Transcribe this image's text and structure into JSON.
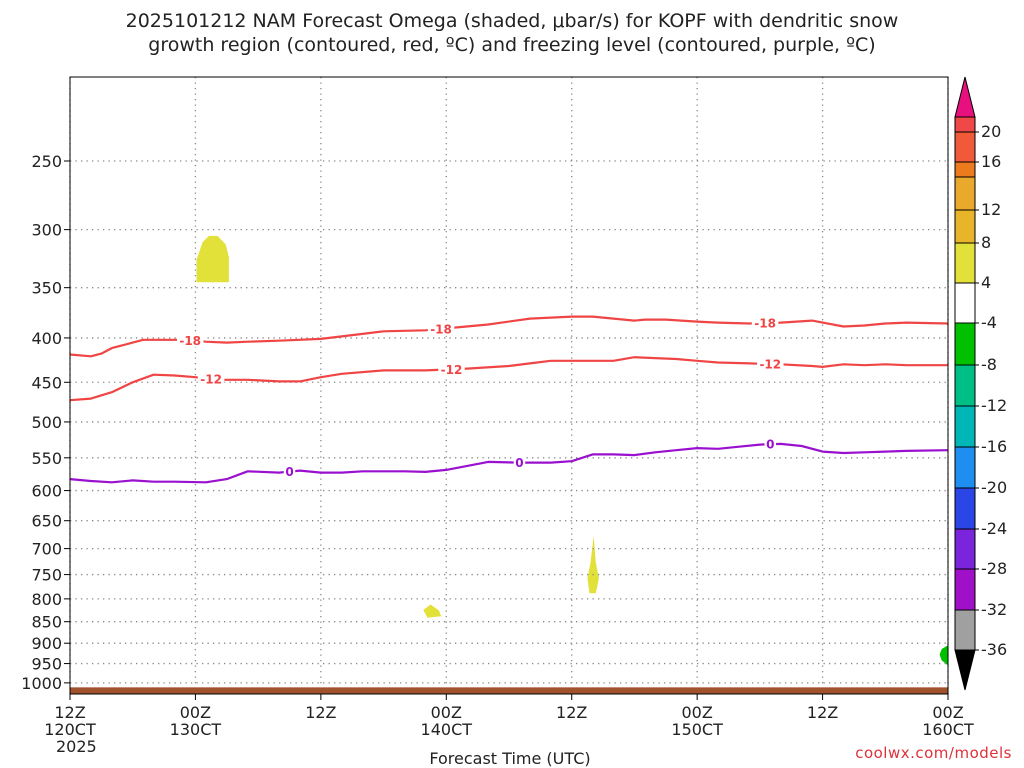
{
  "chart_data": {
    "type": "contour-time-height",
    "title_line1": "2025101212 NAM Forecast Omega (shaded, μbar/s) for KOPF with dendritic snow",
    "title_line2": "growth region (contoured, red, ºC) and freezing level (contoured, purple, ºC)",
    "xlabel": "Forecast Time (UTC)",
    "credit": "coolwx.com/models",
    "x_range_hours": [
      0,
      84
    ],
    "y_range_hPa": [
      1030,
      200
    ],
    "y_ticks": [
      {
        "value": 250,
        "label": "250"
      },
      {
        "value": 300,
        "label": "300"
      },
      {
        "value": 350,
        "label": "350"
      },
      {
        "value": 400,
        "label": "400"
      },
      {
        "value": 450,
        "label": "450"
      },
      {
        "value": 500,
        "label": "500"
      },
      {
        "value": 550,
        "label": "550"
      },
      {
        "value": 600,
        "label": "600"
      },
      {
        "value": 650,
        "label": "650"
      },
      {
        "value": 700,
        "label": "700"
      },
      {
        "value": 750,
        "label": "750"
      },
      {
        "value": 800,
        "label": "800"
      },
      {
        "value": 850,
        "label": "850"
      },
      {
        "value": 900,
        "label": "900"
      },
      {
        "value": 950,
        "label": "950"
      },
      {
        "value": 1000,
        "label": "1000"
      }
    ],
    "x_ticks": [
      {
        "hour": 0,
        "lines": [
          "12Z",
          "120CT",
          "2025"
        ]
      },
      {
        "hour": 12,
        "lines": [
          "00Z",
          "130CT"
        ]
      },
      {
        "hour": 24,
        "lines": [
          "12Z"
        ]
      },
      {
        "hour": 36,
        "lines": [
          "00Z",
          "140CT"
        ]
      },
      {
        "hour": 48,
        "lines": [
          "12Z"
        ]
      },
      {
        "hour": 60,
        "lines": [
          "00Z",
          "150CT"
        ]
      },
      {
        "hour": 72,
        "lines": [
          "12Z"
        ]
      },
      {
        "hour": 84,
        "lines": [
          "00Z",
          "160CT"
        ]
      }
    ],
    "contours": [
      {
        "name": "minus18",
        "level_label": "-18",
        "color": "#f04545",
        "points": [
          [
            0,
            418
          ],
          [
            2,
            420
          ],
          [
            3,
            417
          ],
          [
            4,
            411
          ],
          [
            6,
            405
          ],
          [
            7,
            402
          ],
          [
            9,
            402
          ],
          [
            11,
            402
          ],
          [
            13,
            404
          ],
          [
            15,
            405
          ],
          [
            17,
            404
          ],
          [
            20,
            403
          ],
          [
            24,
            401
          ],
          [
            27,
            397
          ],
          [
            30,
            393
          ],
          [
            34,
            392
          ],
          [
            36,
            390
          ],
          [
            40,
            386
          ],
          [
            44,
            380
          ],
          [
            48,
            378
          ],
          [
            50,
            378
          ],
          [
            52,
            380
          ],
          [
            54,
            382
          ],
          [
            55,
            381
          ],
          [
            57,
            381
          ],
          [
            60,
            383
          ],
          [
            62,
            384
          ],
          [
            65,
            385
          ],
          [
            68,
            384
          ],
          [
            71,
            382
          ],
          [
            72,
            384
          ],
          [
            74,
            388
          ],
          [
            76,
            387
          ],
          [
            78,
            385
          ],
          [
            80,
            384
          ],
          [
            84,
            385
          ]
        ],
        "labels": [
          {
            "hour": 11.5,
            "label": "-18"
          },
          {
            "hour": 35.5,
            "label": "-18"
          },
          {
            "hour": 66.5,
            "label": "-18"
          }
        ]
      },
      {
        "name": "minus12",
        "level_label": "-12",
        "color": "#f04545",
        "points": [
          [
            0,
            472
          ],
          [
            2,
            470
          ],
          [
            4,
            462
          ],
          [
            6,
            450
          ],
          [
            8,
            441
          ],
          [
            10,
            442
          ],
          [
            12,
            444
          ],
          [
            14,
            447
          ],
          [
            17,
            447
          ],
          [
            20,
            449
          ],
          [
            22,
            449
          ],
          [
            24,
            444
          ],
          [
            26,
            440
          ],
          [
            30,
            436
          ],
          [
            34,
            436
          ],
          [
            38,
            434
          ],
          [
            42,
            431
          ],
          [
            44,
            428
          ],
          [
            46,
            425
          ],
          [
            48,
            425
          ],
          [
            50,
            425
          ],
          [
            52,
            425
          ],
          [
            54,
            421
          ],
          [
            56,
            422
          ],
          [
            58,
            423
          ],
          [
            60,
            425
          ],
          [
            62,
            427
          ],
          [
            65,
            428
          ],
          [
            68,
            429
          ],
          [
            71,
            431
          ],
          [
            72,
            432
          ],
          [
            74,
            429
          ],
          [
            76,
            430
          ],
          [
            78,
            429
          ],
          [
            80,
            430
          ],
          [
            84,
            430
          ]
        ],
        "labels": [
          {
            "hour": 13.5,
            "label": "-12"
          },
          {
            "hour": 36.5,
            "label": "-12"
          },
          {
            "hour": 67,
            "label": "-12"
          }
        ]
      },
      {
        "name": "zero",
        "level_label": "0",
        "color": "#9a10cf",
        "points": [
          [
            0,
            582
          ],
          [
            2,
            585
          ],
          [
            4,
            587
          ],
          [
            6,
            584
          ],
          [
            8,
            586
          ],
          [
            10,
            586
          ],
          [
            13,
            587
          ],
          [
            15,
            582
          ],
          [
            17,
            570
          ],
          [
            20,
            572
          ],
          [
            22,
            569
          ],
          [
            24,
            572
          ],
          [
            26,
            572
          ],
          [
            28,
            570
          ],
          [
            30,
            570
          ],
          [
            32,
            570
          ],
          [
            34,
            571
          ],
          [
            36,
            568
          ],
          [
            38,
            562
          ],
          [
            40,
            556
          ],
          [
            43,
            557
          ],
          [
            46,
            557
          ],
          [
            48,
            555
          ],
          [
            50,
            545
          ],
          [
            52,
            545
          ],
          [
            54,
            546
          ],
          [
            56,
            542
          ],
          [
            58,
            539
          ],
          [
            60,
            536
          ],
          [
            62,
            537
          ],
          [
            64,
            534
          ],
          [
            66,
            531
          ],
          [
            68,
            530
          ],
          [
            70,
            533
          ],
          [
            72,
            541
          ],
          [
            74,
            543
          ],
          [
            76,
            542
          ],
          [
            78,
            541
          ],
          [
            80,
            540
          ],
          [
            84,
            539
          ]
        ],
        "labels": [
          {
            "hour": 21,
            "label": "0"
          },
          {
            "hour": 43,
            "label": "0"
          },
          {
            "hour": 67,
            "label": "0"
          }
        ]
      }
    ],
    "omega_blobs": [
      {
        "name": "blob-upper",
        "color": "#e1e13a",
        "points": [
          [
            12.1,
            345
          ],
          [
            12.1,
            325
          ],
          [
            12.7,
            310
          ],
          [
            13.3,
            305
          ],
          [
            14.1,
            305
          ],
          [
            14.9,
            312
          ],
          [
            15.2,
            323
          ],
          [
            15.2,
            345
          ]
        ]
      },
      {
        "name": "blob-mid",
        "color": "#e1e13a",
        "points": [
          [
            49.7,
            788
          ],
          [
            49.5,
            757
          ],
          [
            49.8,
            727
          ],
          [
            50.1,
            677
          ],
          [
            50.3,
            727
          ],
          [
            50.6,
            757
          ],
          [
            50.3,
            788
          ]
        ]
      },
      {
        "name": "blob-low",
        "color": "#e1e13a",
        "points": [
          [
            33.8,
            824
          ],
          [
            34.5,
            812
          ],
          [
            35.3,
            825
          ],
          [
            35.5,
            838
          ],
          [
            34.2,
            841
          ]
        ]
      },
      {
        "name": "blob-green",
        "color": "#00c000",
        "points": [
          [
            84,
            905
          ],
          [
            83.4,
            914
          ],
          [
            83.2,
            928
          ],
          [
            83.4,
            942
          ],
          [
            84,
            955
          ]
        ]
      }
    ],
    "ground_top_hPa": 1012,
    "ground_color": "#a0522d",
    "colorbar": {
      "top_triangle_color": "#e8107e",
      "bottom_triangle_color": "#000000",
      "boxes": [
        {
          "color": "#f04848",
          "label": "20"
        },
        {
          "color": "#f05a38",
          "label": "16"
        },
        {
          "color": "#ec7b1e",
          "label": ""
        },
        {
          "color": "#e8a92d",
          "label": "12"
        },
        {
          "color": "#e8b429",
          "label": "8"
        },
        {
          "color": "#e1e13a",
          "label": "4"
        },
        {
          "color": "#ffffff",
          "label": "-4"
        },
        {
          "color": "#00c000",
          "label": "-8"
        },
        {
          "color": "#00bf86",
          "label": "-12"
        },
        {
          "color": "#00b6b6",
          "label": "-16"
        },
        {
          "color": "#1e8ef0",
          "label": "-20"
        },
        {
          "color": "#2a46e6",
          "label": "-24"
        },
        {
          "color": "#7a25dc",
          "label": "-28"
        },
        {
          "color": "#a010c8",
          "label": "-32"
        },
        {
          "color": "#a0a0a0",
          "label": "-36"
        }
      ]
    }
  }
}
